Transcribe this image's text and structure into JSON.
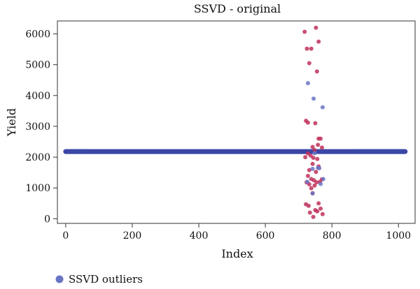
{
  "chart_data": {
    "type": "scatter",
    "title": "SSVD - original",
    "xlabel": "Index",
    "ylabel": "Yield",
    "xlim": [
      -25,
      1050
    ],
    "ylim": [
      -150,
      6420
    ],
    "xticks": [
      0,
      200,
      400,
      600,
      800,
      1000
    ],
    "yticks": [
      0,
      1000,
      2000,
      3000,
      4000,
      5000,
      6000
    ],
    "grid": false,
    "legend_position": "bottom-left",
    "baseline": {
      "value": 2180,
      "x_start": 0,
      "x_end": 1020,
      "color": "#3b47a6"
    },
    "series": [
      {
        "name": "",
        "color": "#c0305a",
        "points": [
          [
            718,
            6070
          ],
          [
            752,
            6200
          ],
          [
            760,
            5750
          ],
          [
            725,
            5520
          ],
          [
            738,
            5520
          ],
          [
            732,
            5050
          ],
          [
            755,
            4780
          ],
          [
            722,
            3180
          ],
          [
            728,
            3120
          ],
          [
            750,
            3100
          ],
          [
            760,
            2600
          ],
          [
            766,
            2600
          ],
          [
            758,
            2400
          ],
          [
            742,
            2330
          ],
          [
            770,
            2310
          ],
          [
            748,
            2230
          ],
          [
            728,
            2120
          ],
          [
            736,
            2050
          ],
          [
            744,
            1980
          ],
          [
            756,
            1940
          ],
          [
            720,
            2000
          ],
          [
            742,
            1780
          ],
          [
            732,
            1580
          ],
          [
            760,
            1700
          ],
          [
            752,
            1520
          ],
          [
            728,
            1390
          ],
          [
            738,
            1290
          ],
          [
            746,
            1250
          ],
          [
            770,
            1280
          ],
          [
            724,
            1180
          ],
          [
            732,
            1120
          ],
          [
            754,
            1180
          ],
          [
            764,
            1200
          ],
          [
            748,
            1080
          ],
          [
            738,
            990
          ],
          [
            742,
            830
          ],
          [
            722,
            470
          ],
          [
            730,
            420
          ],
          [
            734,
            200
          ],
          [
            750,
            280
          ],
          [
            760,
            500
          ],
          [
            766,
            330
          ],
          [
            772,
            150
          ],
          [
            744,
            60
          ],
          [
            756,
            240
          ]
        ]
      },
      {
        "name": "SSVD outliers",
        "color": "#6a74c4",
        "points": [
          [
            728,
            4400
          ],
          [
            745,
            3900
          ],
          [
            772,
            3620
          ],
          [
            748,
            2130
          ],
          [
            762,
            1640
          ],
          [
            742,
            1620
          ],
          [
            758,
            1650
          ],
          [
            726,
            1200
          ],
          [
            774,
            1290
          ],
          [
            766,
            1130
          ],
          [
            742,
            820
          ]
        ]
      }
    ]
  }
}
